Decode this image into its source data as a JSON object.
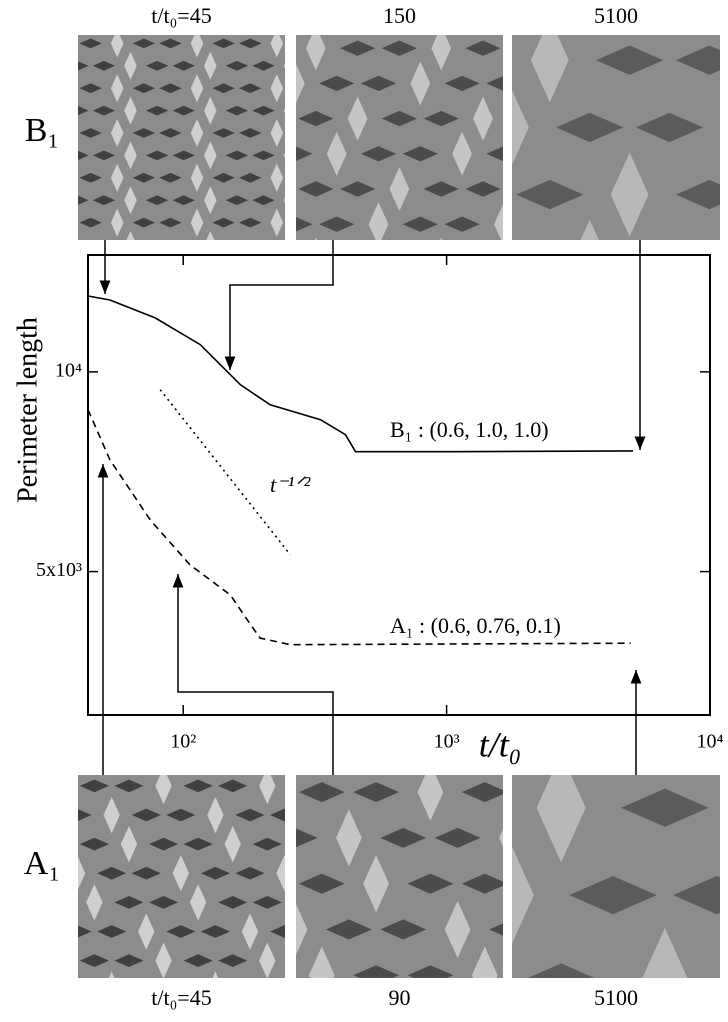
{
  "chart_data": {
    "type": "line",
    "x_label": "t/t₀",
    "y_label": "Perimeter length",
    "log_x": true,
    "log_y": true,
    "xlim": [
      43.5,
      10000
    ],
    "ylim": [
      3040,
      15000
    ],
    "xticks": [
      {
        "value": 100,
        "label": "10²"
      },
      {
        "value": 1000,
        "label": "10³"
      },
      {
        "value": 10000,
        "label": "10⁴"
      }
    ],
    "yticks": [
      {
        "value": 5000,
        "label": "5x10³"
      },
      {
        "value": 10000,
        "label": "10⁴"
      }
    ],
    "series": [
      {
        "name": "B₁ : (0.6, 1.0, 1.0)",
        "color": "#000000",
        "style": "solid",
        "x": [
          43.5,
          52.7,
          78.3,
          116,
          165,
          214,
          332,
          413,
          451,
          1035,
          5100
        ],
        "values": [
          13010,
          12830,
          12060,
          10990,
          9560,
          8920,
          8470,
          8040,
          7580,
          7580,
          7600
        ]
      },
      {
        "name": "A₁ : (0.6, 0.76, 0.1)",
        "color": "#000000",
        "style": "dashed",
        "x": [
          43.5,
          52.7,
          75,
          106,
          151,
          180,
          196,
          255,
          5000
        ],
        "values": [
          8770,
          7370,
          5980,
          5120,
          4610,
          4160,
          3970,
          3880,
          3900
        ]
      },
      {
        "name": "t⁻¹ᐟ²",
        "color": "#000000",
        "style": "dotted",
        "x": [
          81.8,
          255
        ],
        "values": [
          9400,
          5300
        ]
      }
    ],
    "panels": {
      "top": {
        "row_label": "B₁",
        "times": [
          "t/t₀=45",
          "150",
          "5100"
        ]
      },
      "bottom": {
        "row_label": "A₁",
        "times": [
          "t/t₀=45",
          "90",
          "5100"
        ]
      }
    }
  }
}
